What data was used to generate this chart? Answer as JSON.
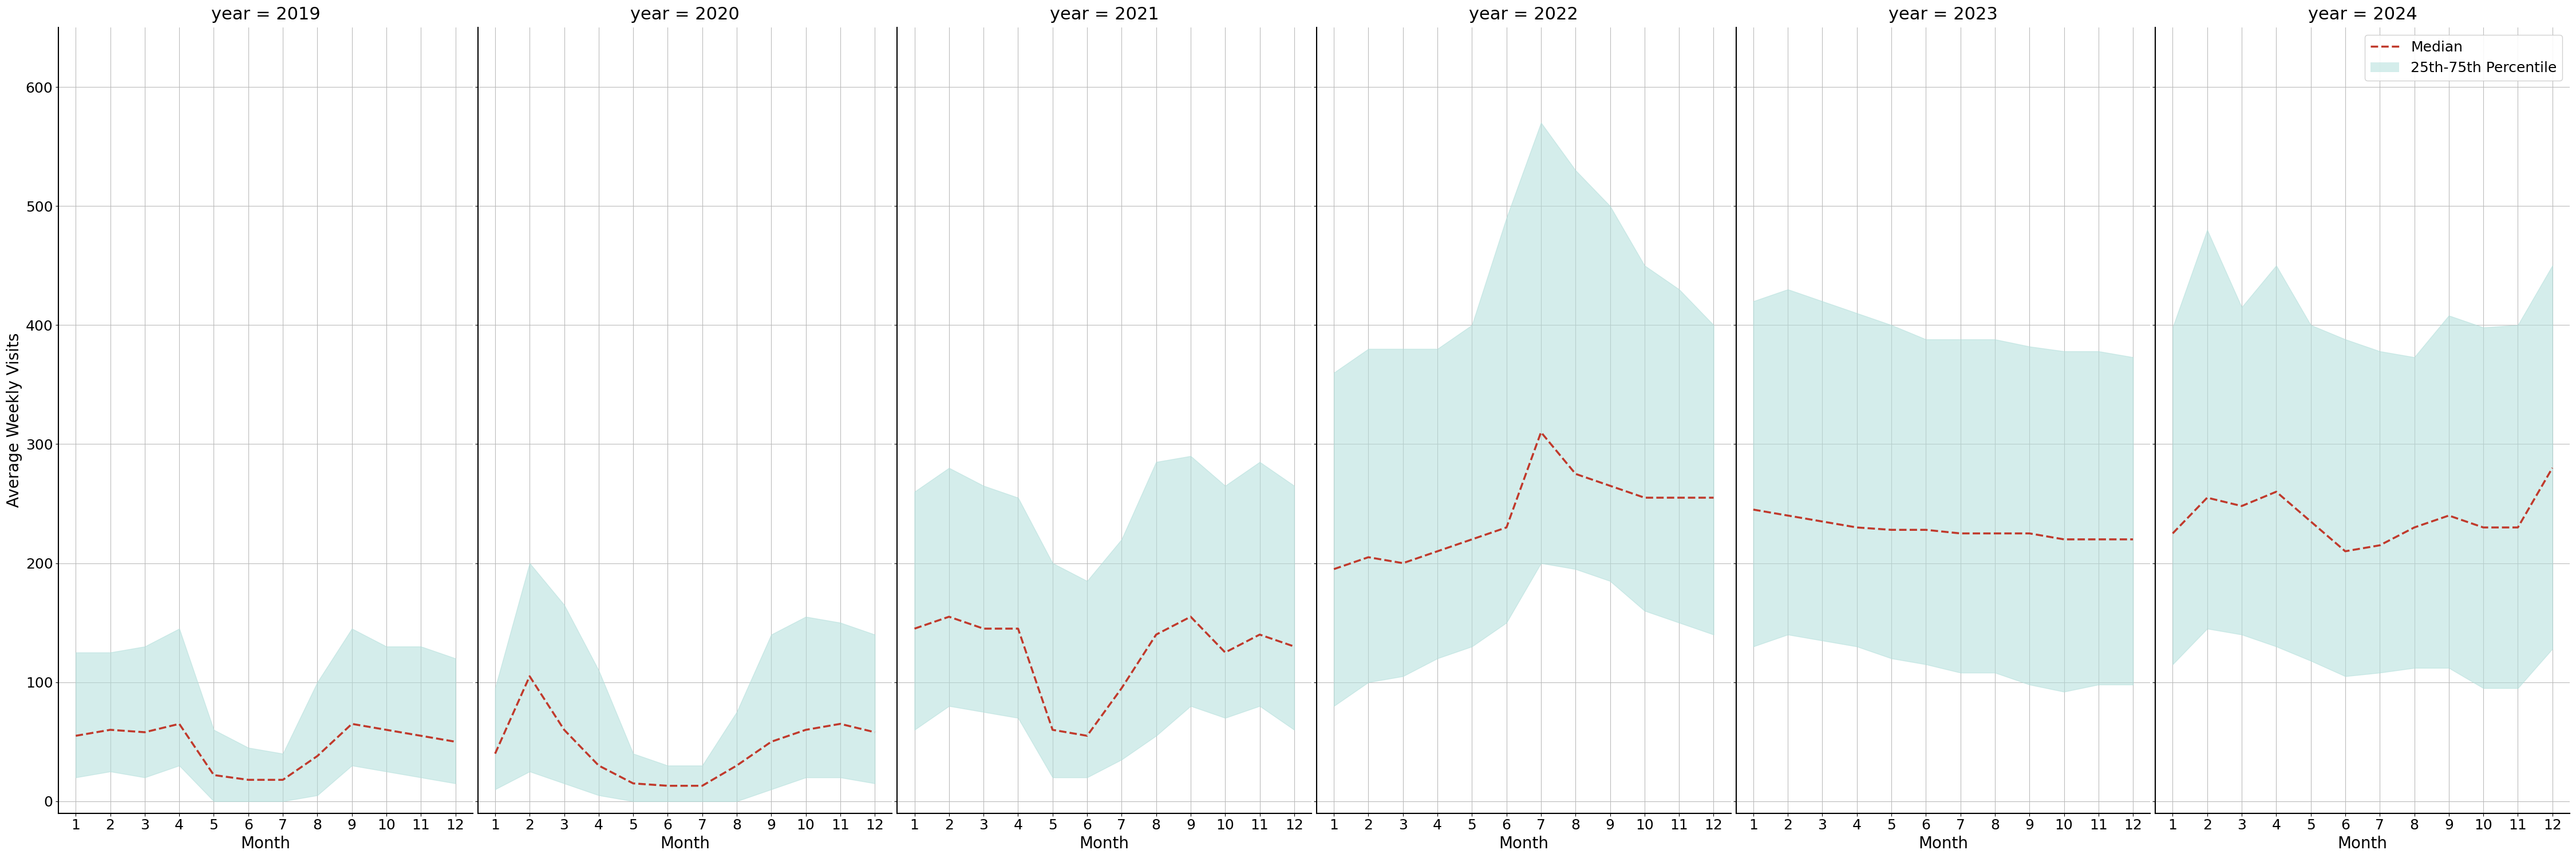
{
  "years": [
    2019,
    2020,
    2021,
    2022,
    2023,
    2024
  ],
  "months": [
    1,
    2,
    3,
    4,
    5,
    6,
    7,
    8,
    9,
    10,
    11,
    12
  ],
  "median": {
    "2019": [
      55,
      60,
      58,
      65,
      22,
      18,
      18,
      38,
      65,
      60,
      55,
      50
    ],
    "2020": [
      40,
      105,
      60,
      30,
      15,
      13,
      13,
      30,
      50,
      60,
      65,
      58
    ],
    "2021": [
      145,
      155,
      145,
      145,
      60,
      55,
      95,
      140,
      155,
      125,
      140,
      130
    ],
    "2022": [
      195,
      205,
      200,
      210,
      220,
      230,
      310,
      275,
      265,
      255,
      255,
      255
    ],
    "2023": [
      245,
      240,
      235,
      230,
      228,
      228,
      225,
      225,
      225,
      220,
      220,
      220
    ],
    "2024": [
      225,
      255,
      248,
      260,
      235,
      210,
      215,
      230,
      240,
      230,
      230,
      280
    ]
  },
  "q25": {
    "2019": [
      20,
      25,
      20,
      30,
      0,
      0,
      0,
      5,
      30,
      25,
      20,
      15
    ],
    "2020": [
      10,
      25,
      15,
      5,
      0,
      0,
      0,
      0,
      10,
      20,
      20,
      15
    ],
    "2021": [
      60,
      80,
      75,
      70,
      20,
      20,
      35,
      55,
      80,
      70,
      80,
      60
    ],
    "2022": [
      80,
      100,
      105,
      120,
      130,
      150,
      200,
      195,
      185,
      160,
      150,
      140
    ],
    "2023": [
      130,
      140,
      135,
      130,
      120,
      115,
      108,
      108,
      98,
      92,
      98,
      98
    ],
    "2024": [
      115,
      145,
      140,
      130,
      118,
      105,
      108,
      112,
      112,
      95,
      95,
      128
    ]
  },
  "q75": {
    "2019": [
      125,
      125,
      130,
      145,
      60,
      45,
      40,
      100,
      145,
      130,
      130,
      120
    ],
    "2020": [
      95,
      200,
      165,
      110,
      40,
      30,
      30,
      75,
      140,
      155,
      150,
      140
    ],
    "2021": [
      260,
      280,
      265,
      255,
      200,
      185,
      220,
      285,
      290,
      265,
      285,
      265
    ],
    "2022": [
      360,
      380,
      380,
      380,
      400,
      490,
      570,
      530,
      500,
      450,
      430,
      400
    ],
    "2023": [
      420,
      430,
      420,
      410,
      400,
      388,
      388,
      388,
      382,
      378,
      378,
      373
    ],
    "2024": [
      398,
      480,
      415,
      450,
      400,
      388,
      378,
      373,
      408,
      398,
      400,
      450
    ]
  },
  "fill_color": "#b2dfdb",
  "fill_alpha": 0.55,
  "line_color": "#c0392b",
  "line_style": "--",
  "line_width": 2.5,
  "grid_color": "#bbbbbb",
  "background_color": "#ffffff",
  "ylabel": "Average Weekly Visits",
  "xlabel": "Month",
  "ylim": [
    -10,
    650
  ],
  "yticks": [
    0,
    100,
    200,
    300,
    400,
    500,
    600
  ],
  "legend_labels": [
    "Median",
    "25th-75th Percentile"
  ],
  "title_fontsize": 22,
  "label_fontsize": 20,
  "tick_fontsize": 18,
  "legend_fontsize": 18
}
